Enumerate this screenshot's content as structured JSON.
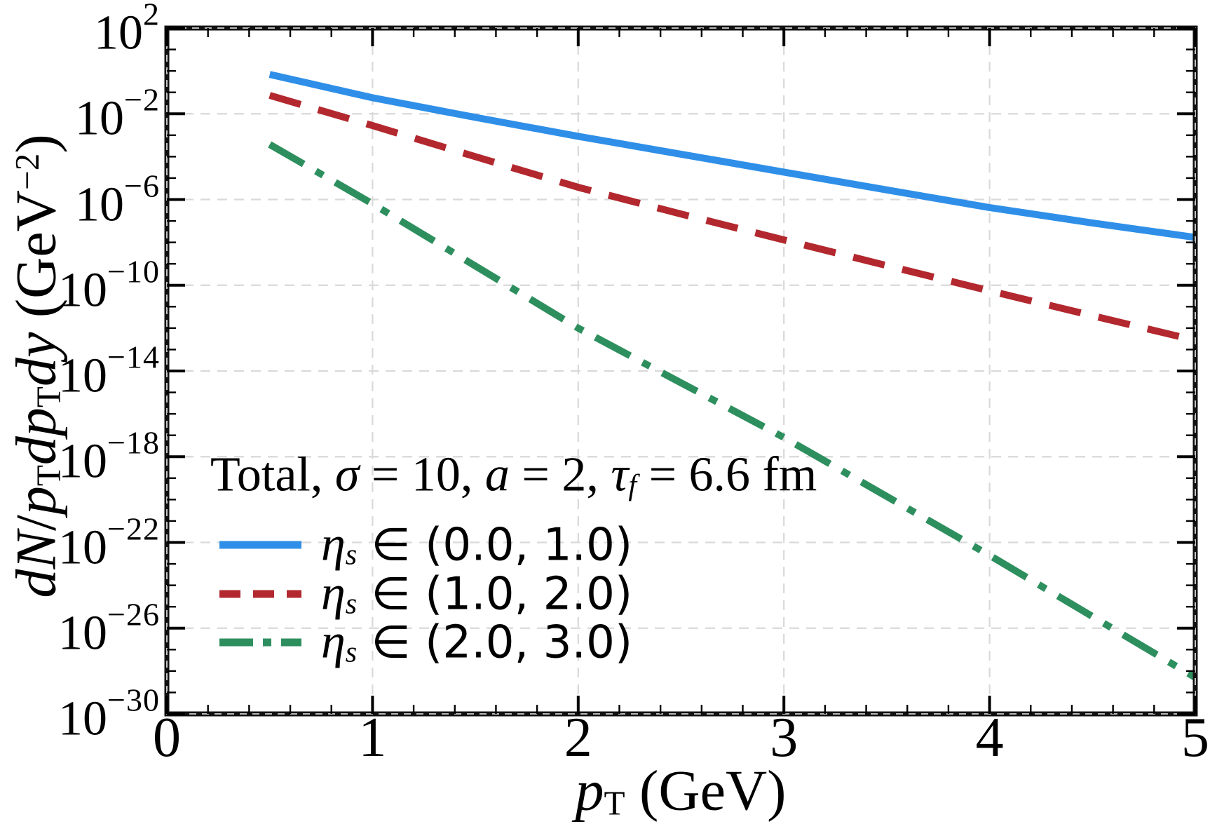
{
  "figure": {
    "background": "#ffffff",
    "frame_color": "#111111",
    "grid_color": "#d9d9d9",
    "tick_color": "#000000"
  },
  "chart_data": {
    "type": "line",
    "title": "",
    "xlabel": "pT (GeV)",
    "ylabel": "dN/pT dpT dy (GeV^-2)",
    "annotation": "Total, σ = 10, a = 2, τf = 6.6 fm",
    "grid": true,
    "legend_position": "lower left inside",
    "x_range": [
      0,
      5
    ],
    "y_range_log10": [
      -30,
      2
    ],
    "x_ticks": [
      0,
      1,
      2,
      3,
      4,
      5
    ],
    "x_tick_labels": [
      "0",
      "1",
      "2",
      "3",
      "4",
      "5"
    ],
    "x_minor_tick_step": 0.2,
    "y_tick_base": "10",
    "y_tick_exponents": [
      2,
      -2,
      -6,
      -10,
      -14,
      -18,
      -22,
      -26,
      -30
    ],
    "y_tick_exponent_labels": [
      "2",
      "−2",
      "−6",
      "−10",
      "−14",
      "−18",
      "−22",
      "−26",
      "−30"
    ],
    "x": [
      0.5,
      1.0,
      1.5,
      2.0,
      2.5,
      3.0,
      3.5,
      4.0,
      4.5,
      5.0
    ],
    "series": [
      {
        "name": "ηs ∈ (0.0, 1.0)",
        "color": "#2f8fe8",
        "style": "solid",
        "y": [
          0.69,
          0.056,
          0.0068,
          0.00089,
          0.00013,
          1.9e-05,
          2.8e-06,
          4.2e-07,
          8.1e-08,
          1.7e-08
        ],
        "log10_y": [
          -0.16,
          -1.25,
          -2.17,
          -3.05,
          -3.9,
          -4.73,
          -5.56,
          -6.38,
          -7.09,
          -7.78
        ]
      },
      {
        "name": "ηs ∈ (1.0, 2.0)",
        "color": "#b2282e",
        "style": "dashed",
        "y": [
          0.072,
          0.0028,
          0.0001,
          3.7e-06,
          2.1e-07,
          1.3e-08,
          8.3e-10,
          5.5e-11,
          3.8e-12,
          2.7e-13
        ],
        "log10_y": [
          -1.14,
          -2.56,
          -4.0,
          -5.43,
          -6.67,
          -7.89,
          -9.08,
          -10.26,
          -11.42,
          -12.57
        ]
      },
      {
        "name": "ηs ∈ (2.0, 3.0)",
        "color": "#2e8f5e",
        "style": "dashdot",
        "y": [
          0.00037,
          6.3e-07,
          7.9e-10,
          1e-12,
          2.8e-15,
          7.9e-18,
          1.4e-20,
          2.5e-23,
          3.5e-26,
          5e-29
        ],
        "log10_y": [
          -3.43,
          -6.2,
          -9.1,
          -12.0,
          -14.55,
          -17.1,
          -19.85,
          -22.6,
          -25.45,
          -28.3
        ]
      }
    ]
  },
  "rich_text": {
    "xlabel": [
      {
        "t": "p",
        "i": 1
      },
      {
        "t": "T",
        "sub": 1
      },
      {
        "t": " (GeV)"
      }
    ],
    "ylabel": [
      {
        "t": "dN",
        "i": 1
      },
      {
        "t": "/"
      },
      {
        "t": "p",
        "i": 1
      },
      {
        "t": "T",
        "sub": 1
      },
      {
        "t": "dp",
        "i": 1
      },
      {
        "t": "T",
        "sub": 1
      },
      {
        "t": "dy",
        "i": 1
      },
      {
        "t": " (GeV"
      },
      {
        "t": "−2",
        "sup": 1
      },
      {
        "t": ")"
      }
    ],
    "annotation": [
      {
        "t": "Total, "
      },
      {
        "t": "σ",
        "i": 1
      },
      {
        "t": " = 10, "
      },
      {
        "t": "a",
        "i": 1
      },
      {
        "t": " = 2, "
      },
      {
        "t": "τ",
        "i": 1
      },
      {
        "t": "f",
        "i": 1,
        "sub": 1
      },
      {
        "t": " = 6.6 fm"
      }
    ],
    "legend": [
      [
        {
          "t": "η",
          "i": 1
        },
        {
          "t": "s",
          "i": 1,
          "sub": 1
        },
        {
          "t": " ∈ (0.0, 1.0)",
          "sans": 1
        }
      ],
      [
        {
          "t": "η",
          "i": 1
        },
        {
          "t": "s",
          "i": 1,
          "sub": 1
        },
        {
          "t": " ∈ (1.0, 2.0)",
          "sans": 1
        }
      ],
      [
        {
          "t": "η",
          "i": 1
        },
        {
          "t": "s",
          "i": 1,
          "sub": 1
        },
        {
          "t": " ∈ (2.0, 3.0)",
          "sans": 1
        }
      ]
    ]
  }
}
